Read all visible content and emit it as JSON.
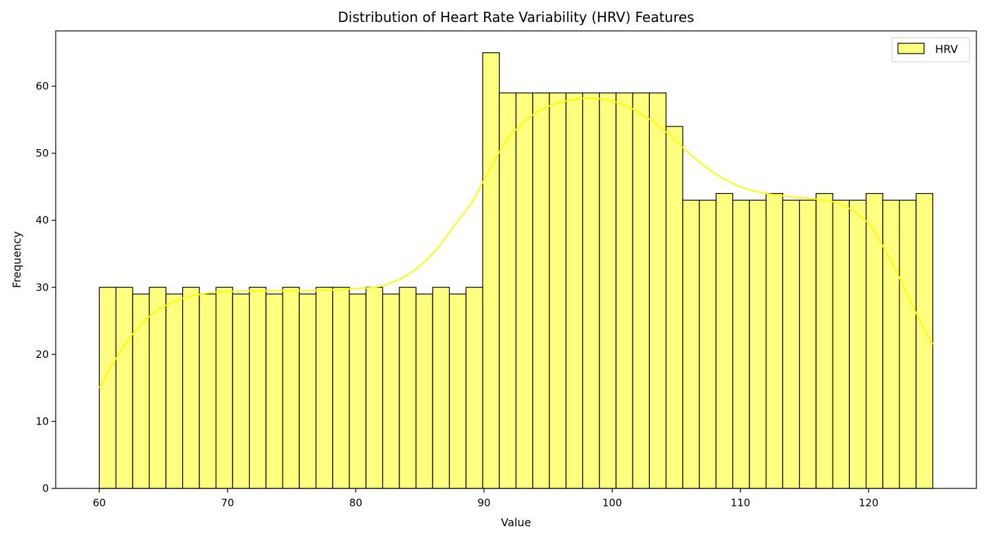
{
  "chart_data": {
    "type": "bar",
    "title": "Distribution of Heart Rate Variability (HRV) Features",
    "xlabel": "Value",
    "ylabel": "Frequency",
    "xlim": [
      56.6,
      128.4
    ],
    "ylim": [
      0,
      68.25
    ],
    "xticks": [
      60,
      70,
      80,
      90,
      100,
      110,
      120
    ],
    "yticks": [
      0,
      10,
      20,
      30,
      40,
      50,
      60
    ],
    "grid": false,
    "legend": {
      "position": "top-right",
      "entries": [
        "HRV"
      ]
    },
    "colors": {
      "bar_fill": "#ffff7f",
      "bar_edge": "#000000",
      "kde_line": "#ffff00"
    },
    "bins": {
      "start": 60,
      "end": 125,
      "count": 50
    },
    "series": [
      {
        "name": "HRV",
        "values": [
          30,
          30,
          29,
          30,
          29,
          30,
          29,
          30,
          29,
          30,
          29,
          30,
          29,
          30,
          30,
          29,
          30,
          29,
          30,
          29,
          30,
          29,
          30,
          65,
          59,
          59,
          59,
          59,
          59,
          59,
          59,
          59,
          59,
          59,
          54,
          43,
          43,
          44,
          43,
          43,
          44,
          43,
          43,
          44,
          43,
          43,
          44,
          43,
          43,
          44
        ]
      }
    ],
    "kde": {
      "x": [
        60,
        62,
        64,
        66,
        68,
        70,
        72,
        74,
        76,
        78,
        80,
        82,
        84,
        86,
        88,
        89,
        90,
        91,
        92,
        94,
        96,
        98,
        100,
        102,
        104,
        106,
        108,
        110,
        112,
        114,
        116,
        118,
        120,
        121,
        122,
        123,
        124,
        125
      ],
      "y": [
        15,
        21.5,
        25.8,
        28,
        29,
        29.4,
        29.5,
        29.5,
        29.5,
        29.6,
        29.8,
        30.2,
        31.8,
        35,
        40,
        42.5,
        46,
        49.5,
        52.5,
        56,
        57.6,
        58.2,
        57.8,
        56.2,
        53.5,
        50,
        47,
        45,
        44,
        43.5,
        43.1,
        42.3,
        39.5,
        36.5,
        33,
        29,
        25,
        21.5
      ]
    }
  }
}
